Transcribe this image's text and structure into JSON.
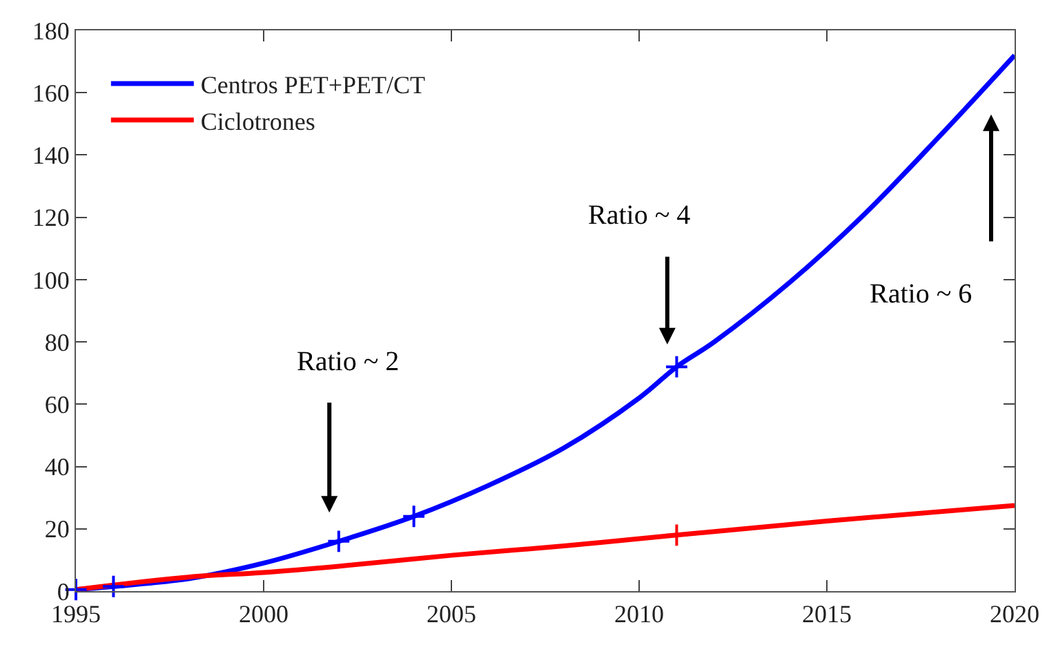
{
  "chart_data": {
    "type": "line",
    "xlim": [
      1995,
      2020
    ],
    "xticks": [
      1995,
      2000,
      2005,
      2010,
      2015,
      2020
    ],
    "ylim": [
      0,
      180
    ],
    "yticks": [
      0,
      20,
      40,
      60,
      80,
      100,
      120,
      140,
      160,
      180
    ],
    "legend": "top left",
    "line_style": "solid",
    "series": [
      {
        "name": "Centros PET+PET/CT",
        "color": "#0000ff",
        "marker": "none",
        "x": [
          1995,
          1996,
          1998,
          2000,
          2002,
          2004,
          2006,
          2008,
          2010,
          2011,
          2012,
          2014,
          2016,
          2018,
          2020
        ],
        "values": [
          0.5,
          1.5,
          4,
          9,
          16,
          24,
          34,
          46,
          62,
          72,
          80,
          99,
          121,
          146,
          172
        ]
      },
      {
        "name": "Ciclotrones",
        "color": "#ff0000",
        "marker": "none",
        "x": [
          1995,
          1998,
          2000,
          2002,
          2005,
          2008,
          2011,
          2015,
          2020
        ],
        "values": [
          0.5,
          4.5,
          6,
          8,
          11.5,
          14.5,
          18,
          22.5,
          27.5
        ]
      },
      {
        "type": "scatter",
        "color": "#0000ff",
        "marker": "cross",
        "x": [
          1995,
          1996,
          2002,
          2004,
          2011
        ],
        "values": [
          0.5,
          1.5,
          16,
          24,
          72
        ]
      },
      {
        "type": "scatter",
        "color": "#ff0000",
        "marker": "cross",
        "x": [
          2011
        ],
        "values": [
          18
        ]
      }
    ],
    "annotations": [
      "Ratio ~ 2",
      "Ratio ~ 4",
      "Ratio ~ 6"
    ]
  }
}
